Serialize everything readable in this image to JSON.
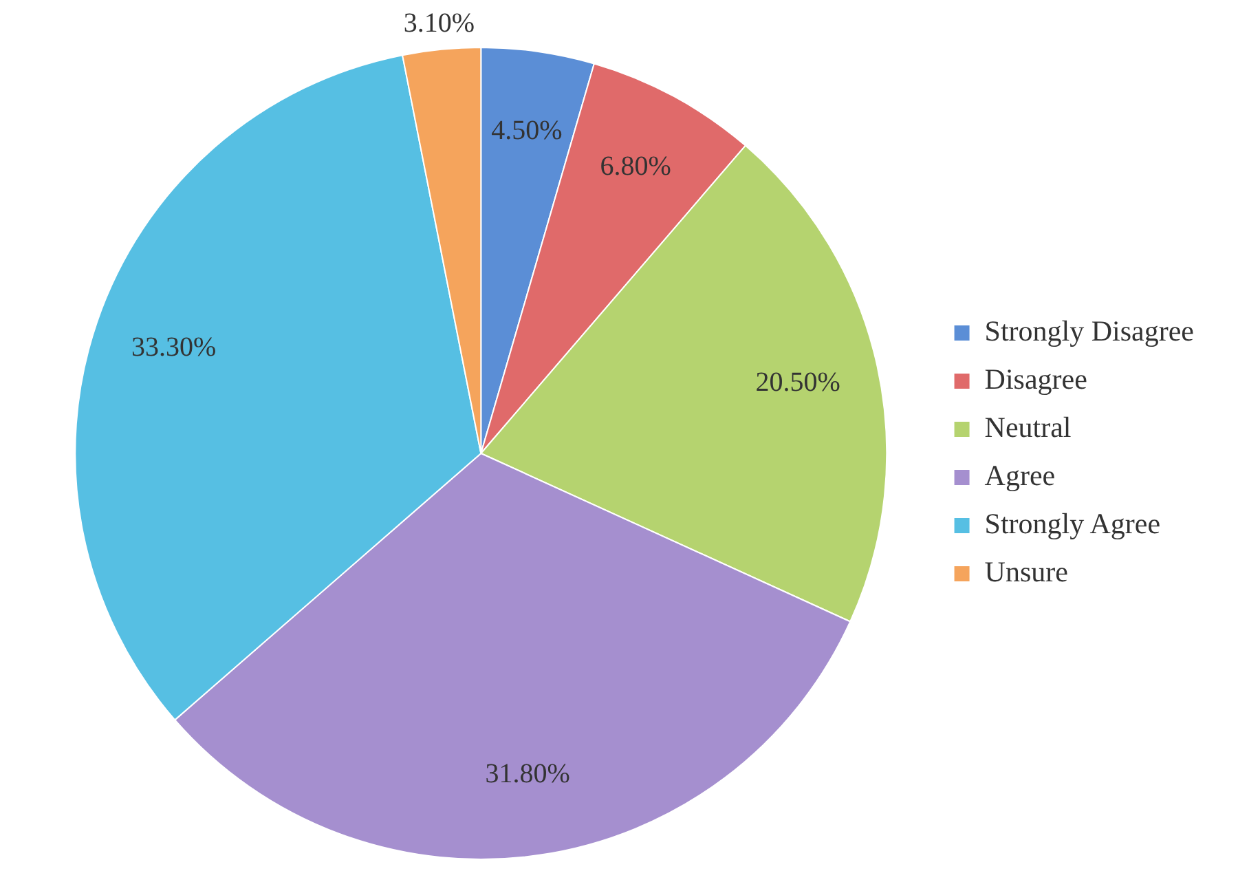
{
  "chart_data": {
    "type": "pie",
    "categories": [
      "Strongly Disagree",
      "Disagree",
      "Neutral",
      "Agree",
      "Strongly Agree",
      "Unsure"
    ],
    "values": [
      4.5,
      6.8,
      20.5,
      31.8,
      33.3,
      3.1
    ],
    "value_labels": [
      "4.50%",
      "6.80%",
      "20.50%",
      "31.80%",
      "33.30%",
      "3.10%"
    ],
    "colors": [
      "#5b8ed6",
      "#e06a6a",
      "#b5d36f",
      "#a58fcf",
      "#56bfe3",
      "#f5a45c"
    ],
    "legend": "right"
  }
}
